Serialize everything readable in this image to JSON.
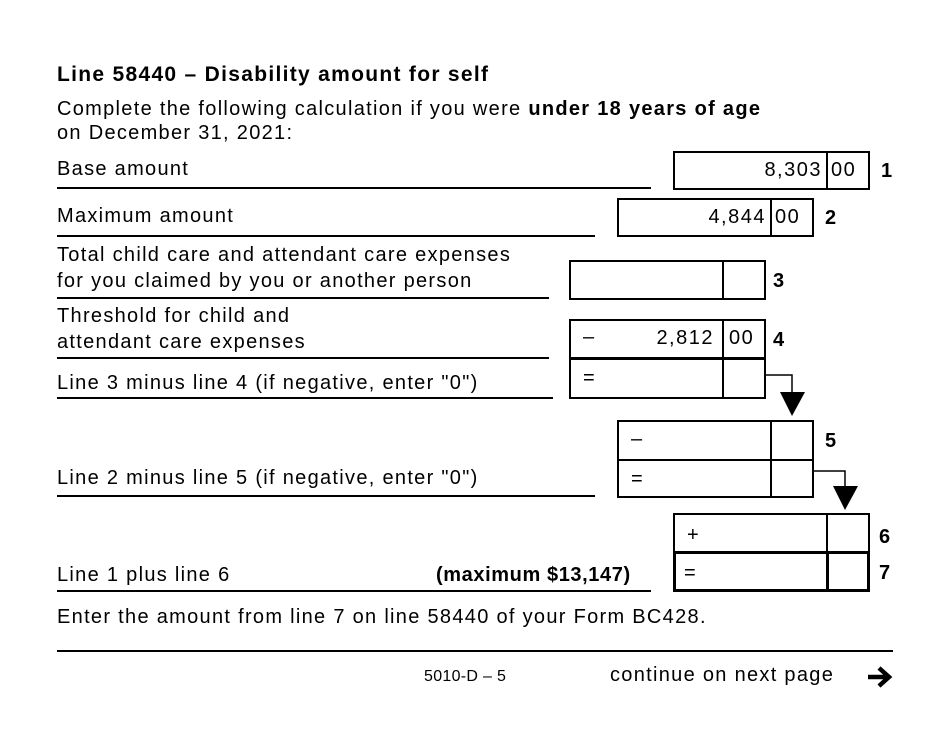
{
  "title": "Line 58440 – Disability amount for self",
  "intro": {
    "prefix": "Complete the following calculation if you were ",
    "bold": "under 18 years of age",
    "suffix": "on December 31, 2021:"
  },
  "lines": [
    {
      "number": "1",
      "label": "Base amount",
      "dollars": "8,303",
      "cents": "00",
      "operator": ""
    },
    {
      "number": "2",
      "label": "Maximum amount",
      "dollars": "4,844",
      "cents": "00",
      "operator": ""
    },
    {
      "number": "3",
      "label_line1": "Total child care and attendant care expenses",
      "label_line2": "for you claimed by you or another person",
      "dollars": "",
      "cents": "",
      "operator": ""
    },
    {
      "number": "4",
      "label_line1": "Threshold for child and",
      "label_line2": "attendant care expenses",
      "dollars": "2,812",
      "cents": "00",
      "operator": "–"
    },
    {
      "number": "",
      "label": "Line 3 minus line 4 (if negative, enter \"0\")",
      "operator": "="
    },
    {
      "number": "5",
      "operator": "–"
    },
    {
      "number": "",
      "label": "Line 2 minus line 5 (if negative, enter \"0\")",
      "operator": "="
    },
    {
      "number": "6",
      "operator": "+"
    },
    {
      "number": "7",
      "label": "Line 1 plus line 6",
      "note": "(maximum $13,147)",
      "operator": "="
    }
  ],
  "instruction": "Enter the amount from line 7 on line 58440 of your Form BC428.",
  "footer": {
    "page_id": "5010-D – 5",
    "continue": "continue on next page",
    "continue_icon": "arrow-right-icon"
  }
}
